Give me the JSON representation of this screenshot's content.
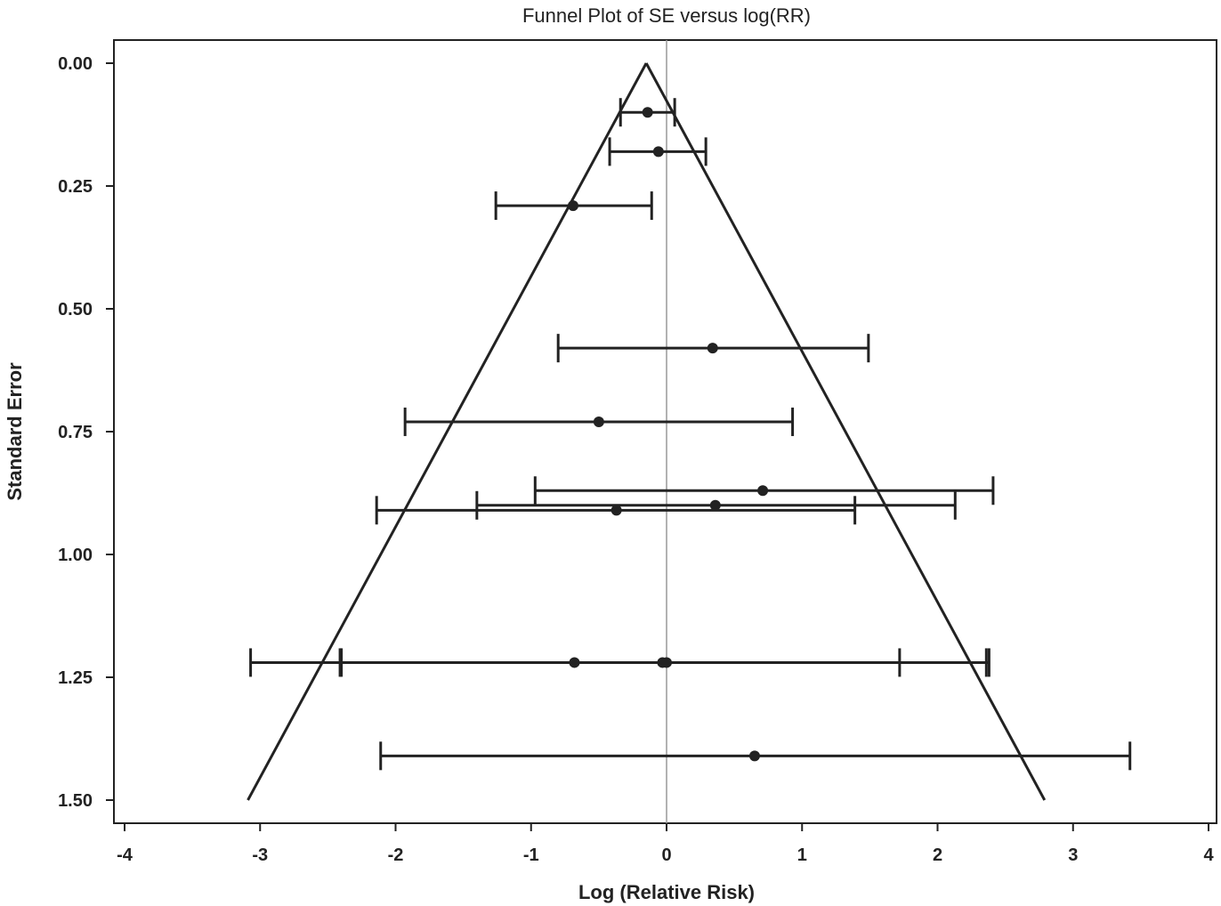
{
  "chart_data": {
    "type": "scatter",
    "title": "Funnel Plot of SE versus log(RR)",
    "xlabel": "Log (Relative Risk)",
    "ylabel": "Standard Error",
    "xlim": [
      -4,
      4
    ],
    "ylim": [
      0,
      1.5
    ],
    "y_reversed": true,
    "x_ticks": [
      -4,
      -3,
      -2,
      -1,
      0,
      1,
      2,
      3,
      4
    ],
    "x_tick_labels": [
      "-4",
      "-3",
      "-2",
      "-1",
      "0",
      "1",
      "2",
      "3",
      "4"
    ],
    "y_ticks": [
      0,
      0.25,
      0.5,
      0.75,
      1.0,
      1.25,
      1.5
    ],
    "y_tick_labels": [
      "0.00",
      "0.25",
      "0.50",
      "0.75",
      "1.00",
      "1.25",
      "1.50"
    ],
    "grid": false,
    "reference_line_x": 0,
    "funnel": {
      "apex": [
        -0.15,
        0.0
      ],
      "left_base": [
        -3.09,
        1.5
      ],
      "right_base": [
        2.79,
        1.5
      ]
    },
    "points": [
      {
        "x": -0.14,
        "se": 0.1,
        "ci": [
          -0.34,
          0.06
        ]
      },
      {
        "x": -0.06,
        "se": 0.18,
        "ci": [
          -0.42,
          0.29
        ]
      },
      {
        "x": -0.69,
        "se": 0.29,
        "ci": [
          -1.26,
          -0.11
        ]
      },
      {
        "x": 0.34,
        "se": 0.58,
        "ci": [
          -0.8,
          1.49
        ]
      },
      {
        "x": -0.5,
        "se": 0.73,
        "ci": [
          -1.93,
          0.93
        ]
      },
      {
        "x": 0.71,
        "se": 0.87,
        "ci": [
          -0.97,
          2.41
        ]
      },
      {
        "x": 0.36,
        "se": 0.9,
        "ci": [
          -1.4,
          2.13
        ]
      },
      {
        "x": -0.37,
        "se": 0.91,
        "ci": [
          -2.14,
          1.39
        ]
      },
      {
        "x": -0.68,
        "se": 1.22,
        "ci": [
          -3.07,
          1.72
        ]
      },
      {
        "x": -0.03,
        "se": 1.22,
        "ci": [
          -2.41,
          2.36
        ]
      },
      {
        "x": 0.0,
        "se": 1.22,
        "ci": [
          -2.4,
          2.38
        ]
      },
      {
        "x": 0.65,
        "se": 1.41,
        "ci": [
          -2.11,
          3.42
        ]
      }
    ]
  }
}
